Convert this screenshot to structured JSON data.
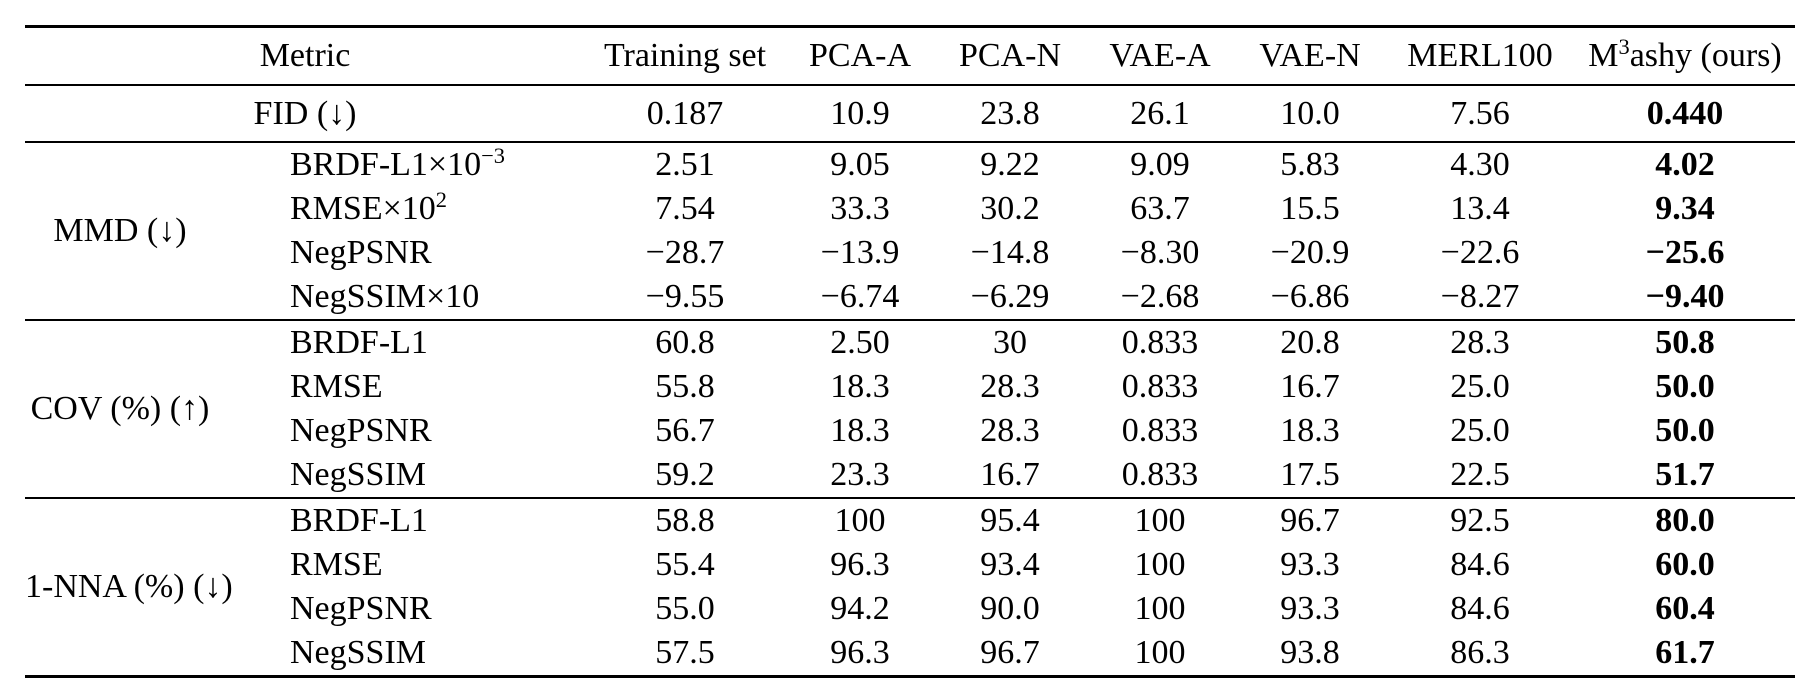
{
  "table": {
    "header": {
      "metric_label": "Metric",
      "columns": [
        "Training set",
        "PCA-A",
        "PCA-N",
        "VAE-A",
        "VAE-N",
        "MERL100"
      ],
      "ours": {
        "base": "M",
        "sup": "3",
        "rest": "ashy (ours)"
      }
    },
    "sections": [
      {
        "group_label": "FID (↓)",
        "full_span": true,
        "rows": [
          {
            "metric": "",
            "metric_sup": "",
            "values": [
              "0.187",
              "10.9",
              "23.8",
              "26.1",
              "10.0",
              "7.56",
              "0.440"
            ]
          }
        ]
      },
      {
        "group_label": "MMD (↓)",
        "full_span": false,
        "rows": [
          {
            "metric": "BRDF-L1×10",
            "metric_sup": "−3",
            "values": [
              "2.51",
              "9.05",
              "9.22",
              "9.09",
              "5.83",
              "4.30",
              "4.02"
            ]
          },
          {
            "metric": "RMSE×10",
            "metric_sup": "2",
            "values": [
              "7.54",
              "33.3",
              "30.2",
              "63.7",
              "15.5",
              "13.4",
              "9.34"
            ]
          },
          {
            "metric": "NegPSNR",
            "metric_sup": "",
            "values": [
              "−28.7",
              "−13.9",
              "−14.8",
              "−8.30",
              "−20.9",
              "−22.6",
              "−25.6"
            ]
          },
          {
            "metric": "NegSSIM×10",
            "metric_sup": "",
            "values": [
              "−9.55",
              "−6.74",
              "−6.29",
              "−2.68",
              "−6.86",
              "−8.27",
              "−9.40"
            ]
          }
        ]
      },
      {
        "group_label": "COV (%) (↑)",
        "full_span": false,
        "rows": [
          {
            "metric": "BRDF-L1",
            "metric_sup": "",
            "values": [
              "60.8",
              "2.50",
              "30",
              "0.833",
              "20.8",
              "28.3",
              "50.8"
            ]
          },
          {
            "metric": "RMSE",
            "metric_sup": "",
            "values": [
              "55.8",
              "18.3",
              "28.3",
              "0.833",
              "16.7",
              "25.0",
              "50.0"
            ]
          },
          {
            "metric": "NegPSNR",
            "metric_sup": "",
            "values": [
              "56.7",
              "18.3",
              "28.3",
              "0.833",
              "18.3",
              "25.0",
              "50.0"
            ]
          },
          {
            "metric": "NegSSIM",
            "metric_sup": "",
            "values": [
              "59.2",
              "23.3",
              "16.7",
              "0.833",
              "17.5",
              "22.5",
              "51.7"
            ]
          }
        ]
      },
      {
        "group_label": "1-NNA (%) (↓)",
        "full_span": false,
        "rows": [
          {
            "metric": "BRDF-L1",
            "metric_sup": "",
            "values": [
              "58.8",
              "100",
              "95.4",
              "100",
              "96.7",
              "92.5",
              "80.0"
            ]
          },
          {
            "metric": "RMSE",
            "metric_sup": "",
            "values": [
              "55.4",
              "96.3",
              "93.4",
              "100",
              "93.3",
              "84.6",
              "60.0"
            ]
          },
          {
            "metric": "NegPSNR",
            "metric_sup": "",
            "values": [
              "55.0",
              "94.2",
              "90.0",
              "100",
              "93.3",
              "84.6",
              "60.4"
            ]
          },
          {
            "metric": "NegSSIM",
            "metric_sup": "",
            "values": [
              "57.5",
              "96.3",
              "96.7",
              "100",
              "93.8",
              "86.3",
              "61.7"
            ]
          }
        ]
      }
    ]
  }
}
